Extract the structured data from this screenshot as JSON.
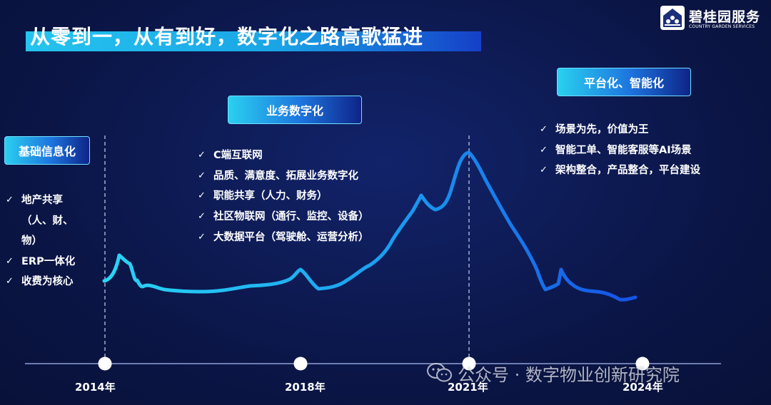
{
  "title": "从零到一，从有到好，数字化之路高歌猛进",
  "logo": {
    "name": "碧桂园服务",
    "subtitle": "COUNTRY GARDEN SERVICES"
  },
  "stages": [
    {
      "label": "基础信息化",
      "items": [
        "地产共享",
        "（人、财、",
        "物）",
        "ERP一体化",
        "收费为核心"
      ]
    },
    {
      "label": "业务数字化",
      "items": [
        "C端互联网",
        "品质、满意度、拓展业务数字化",
        "职能共享（人力、财务）",
        "社区物联网（通行、监控、设备）",
        "大数据平台（驾驶舱、运营分析）"
      ]
    },
    {
      "label": "平台化、智能化",
      "items": [
        "场景为先，价值为王",
        "智能工单、智能客服等AI场景",
        "架构整合，产品整合，平台建设"
      ]
    }
  ],
  "check_mark": "✓",
  "timeline": {
    "years": [
      "2014年",
      "2018年",
      "2021年",
      "2024年"
    ]
  },
  "colors": {
    "background": "#0d1a4e",
    "curve_start": "#2ad6f5",
    "curve_end": "#1652e6",
    "accent": "#25c4ee"
  },
  "watermark": "公众号 · 数字物业创新研究院"
}
